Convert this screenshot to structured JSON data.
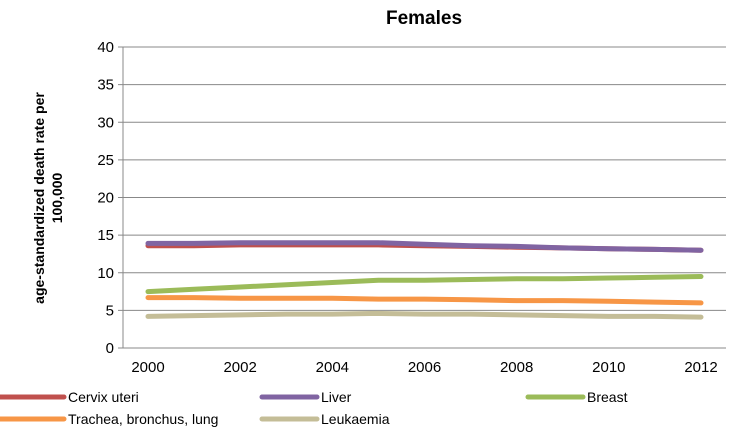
{
  "chart_data": {
    "type": "line",
    "title": "Females",
    "xlabel": "",
    "ylabel": "age-standardized death rate per 100,000",
    "ylabel_lines": [
      "age-standardized death rate per",
      "100,000"
    ],
    "x": [
      2000,
      2001,
      2002,
      2003,
      2004,
      2005,
      2006,
      2007,
      2008,
      2009,
      2010,
      2011,
      2012
    ],
    "x_ticks": [
      2000,
      2002,
      2004,
      2006,
      2008,
      2010,
      2012
    ],
    "ylim": [
      0,
      40
    ],
    "y_ticks": [
      0,
      5,
      10,
      15,
      20,
      25,
      30,
      35,
      40
    ],
    "grid": true,
    "legend_position": "bottom",
    "series": [
      {
        "name": "Cervix uteri",
        "color": "#C0504D",
        "values": [
          13.6,
          13.6,
          13.7,
          13.7,
          13.7,
          13.7,
          13.6,
          13.5,
          13.4,
          13.3,
          13.2,
          13.1,
          13.0
        ]
      },
      {
        "name": "Liver",
        "color": "#8064A2",
        "values": [
          13.9,
          13.9,
          14.0,
          14.0,
          14.0,
          14.0,
          13.8,
          13.6,
          13.5,
          13.3,
          13.2,
          13.1,
          13.0
        ]
      },
      {
        "name": "Breast",
        "color": "#9BBB59",
        "values": [
          7.5,
          7.8,
          8.1,
          8.4,
          8.7,
          9.0,
          9.0,
          9.1,
          9.2,
          9.2,
          9.3,
          9.4,
          9.5
        ]
      },
      {
        "name": "Trachea, bronchus, lung",
        "color": "#F79646",
        "values": [
          6.7,
          6.7,
          6.6,
          6.6,
          6.6,
          6.5,
          6.5,
          6.4,
          6.3,
          6.3,
          6.2,
          6.1,
          6.0
        ]
      },
      {
        "name": "Leukaemia",
        "color": "#C4BD97",
        "values": [
          4.2,
          4.3,
          4.4,
          4.5,
          4.5,
          4.6,
          4.5,
          4.5,
          4.4,
          4.3,
          4.2,
          4.2,
          4.1
        ]
      }
    ]
  }
}
